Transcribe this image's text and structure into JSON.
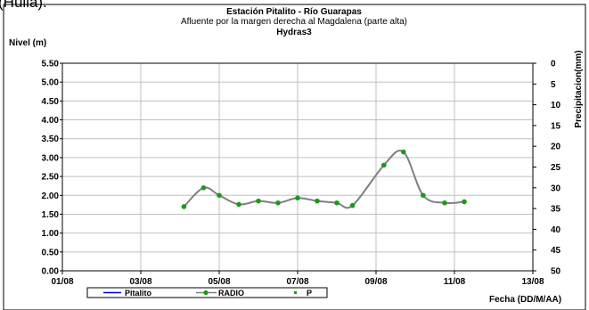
{
  "caption_fragment": "(Huila).",
  "chart_data": {
    "type": "line",
    "title": "Estación Pitalito  - Río Guarapas",
    "subtitle": "Afluente por la margen derecha al Magdalena (parte alta)",
    "subtitle2": "Hydras3",
    "ylabel": "Nivel (m)",
    "y2label": "Precipitacion(mm)",
    "xlabel": "Fecha (DD/M/AA)",
    "x_ticks": [
      "01/08",
      "03/08",
      "05/08",
      "07/08",
      "09/08",
      "11/08",
      "13/08"
    ],
    "ylim": [
      0,
      5.5
    ],
    "y_ticks": [
      "0.00",
      "0.50",
      "1.00",
      "1.50",
      "2.00",
      "2.50",
      "3.00",
      "3.50",
      "4.00",
      "4.50",
      "5.00",
      "5.50"
    ],
    "y2lim": [
      50,
      0
    ],
    "y2_ticks": [
      "0",
      "5",
      "10",
      "15",
      "20",
      "25",
      "30",
      "35",
      "40",
      "45",
      "50"
    ],
    "grid": true,
    "legend": "bottom",
    "legend_entries": [
      "Pitalito",
      "RADIO",
      "P"
    ],
    "series": [
      {
        "name": "RADIO",
        "color": "#1a9a1a",
        "line_color": "#808080",
        "x": [
          4.1,
          4.6,
          5.0,
          5.5,
          6.0,
          6.5,
          7.0,
          7.5,
          8.0,
          8.4,
          9.2,
          9.7,
          10.2,
          10.75,
          11.25
        ],
        "y": [
          1.7,
          2.2,
          2.0,
          1.76,
          1.85,
          1.8,
          1.93,
          1.85,
          1.8,
          1.73,
          2.8,
          3.15,
          2.0,
          1.8,
          1.83
        ]
      }
    ]
  },
  "colors": {
    "pitalito": "#0000cc",
    "radio_marker": "#1a9a1a",
    "curve": "#808080",
    "grid": "#c0c0c0"
  }
}
